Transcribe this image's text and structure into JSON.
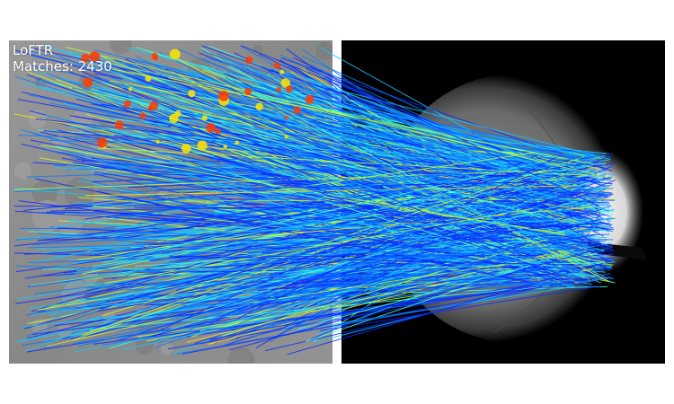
{
  "overlay": {
    "method_label": "LoFTR",
    "matches_label": "Matches: 2430"
  },
  "match_count": 2430,
  "colors": {
    "background": "#ffffff",
    "left_image_base": "#8c8c8c",
    "right_image_background": "#000000",
    "fundus_gray": "#9a9a9a",
    "optic_disc": "#e6e6e6",
    "colormap": "jet",
    "jet_stops": [
      "#0a2cff",
      "#0a7bff",
      "#18c6ff",
      "#40ffd2",
      "#b8ff3a",
      "#ffe600",
      "#ff3a00",
      "#c00000"
    ]
  },
  "images": [
    {
      "name": "left-image",
      "description": "grayscale retinal patch"
    },
    {
      "name": "right-image",
      "description": "fundus photograph with optic disc"
    }
  ]
}
